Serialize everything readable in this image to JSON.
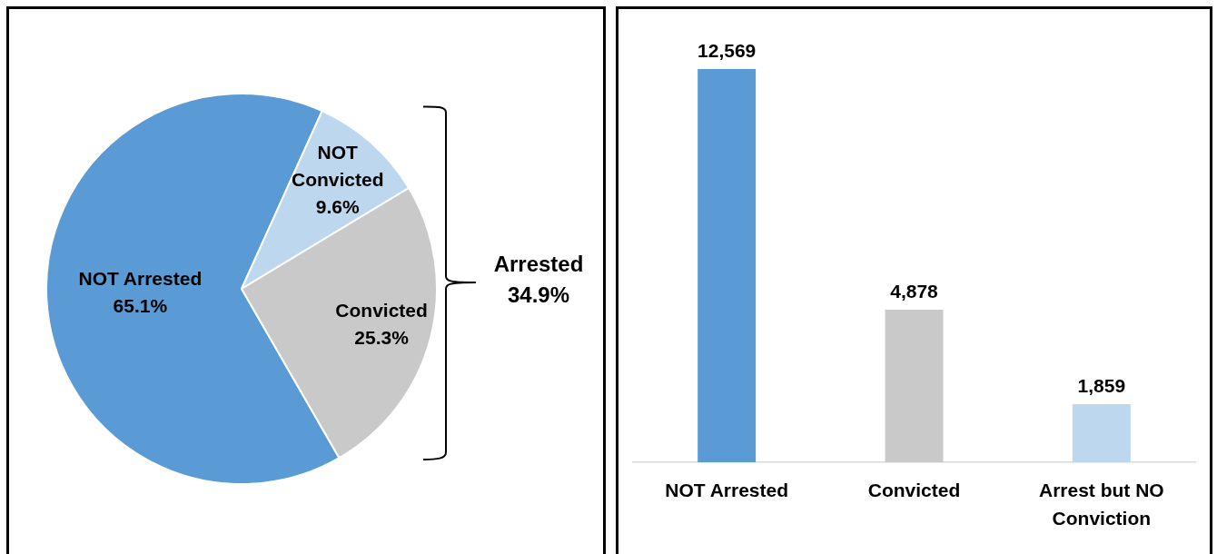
{
  "chart_data": [
    {
      "type": "pie",
      "categories": [
        "NOT Arrested",
        "NOT Convicted",
        "Convicted"
      ],
      "values": [
        65.1,
        9.6,
        25.3
      ],
      "colors": [
        "#5b9bd5",
        "#bdd7ee",
        "#c9c9c9"
      ],
      "value_labels": [
        "65.1%",
        "9.6%",
        "25.3%"
      ],
      "annotations": [
        "Arrested 34.9%"
      ]
    },
    {
      "type": "bar",
      "categories": [
        "NOT Arrested",
        "Convicted",
        "Arrest but NO Conviction"
      ],
      "values": [
        12569,
        4878,
        1859
      ],
      "colors": [
        "#5b9bd5",
        "#c9c9c9",
        "#bdd7ee"
      ],
      "value_labels": [
        "12,569",
        "4,878",
        "1,859"
      ]
    }
  ]
}
